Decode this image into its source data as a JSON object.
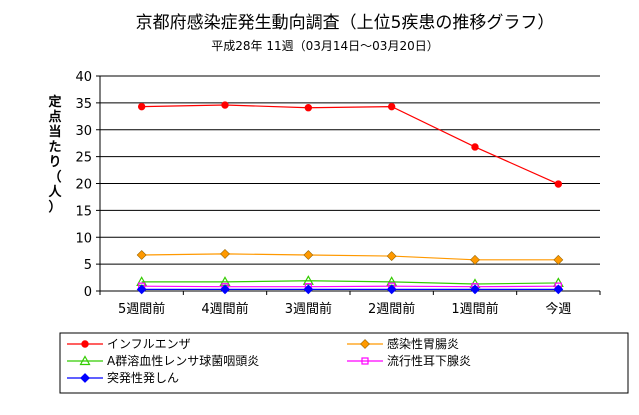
{
  "chart_data": {
    "type": "line",
    "title": "京都府感染症発生動向調査（上位5疾患の推移グラフ）",
    "subtitle": "平成28年 11週（03月14日～03月20日）",
    "ylabel": "定点当たり（人）",
    "xlabel": "",
    "categories": [
      "5週間前",
      "4週間前",
      "3週間前",
      "2週間前",
      "1週間前",
      "今週"
    ],
    "ylim": [
      0,
      40
    ],
    "yticks": [
      0,
      5,
      10,
      15,
      20,
      25,
      30,
      35,
      40
    ],
    "grid": true,
    "legend_position": "bottom",
    "series": [
      {
        "name": "インフルエンザ",
        "values": [
          34.3,
          34.6,
          34.1,
          34.3,
          26.8,
          19.9
        ],
        "color": "#ff0000",
        "marker": "circle"
      },
      {
        "name": "感染性胃腸炎",
        "values": [
          6.7,
          6.9,
          6.7,
          6.5,
          5.8,
          5.8
        ],
        "color": "#ff9900",
        "marker": "diamond"
      },
      {
        "name": "A群溶血性レンサ球菌咽頭炎",
        "values": [
          1.7,
          1.7,
          1.9,
          1.7,
          1.3,
          1.5
        ],
        "color": "#33cc00",
        "marker": "triangle"
      },
      {
        "name": "流行性耳下腺炎",
        "values": [
          0.9,
          0.8,
          0.8,
          0.9,
          0.8,
          0.9
        ],
        "color": "#ff00ff",
        "marker": "square"
      },
      {
        "name": "突発性発しん",
        "values": [
          0.3,
          0.3,
          0.3,
          0.3,
          0.3,
          0.3
        ],
        "color": "#0000ff",
        "marker": "diamond"
      }
    ]
  }
}
